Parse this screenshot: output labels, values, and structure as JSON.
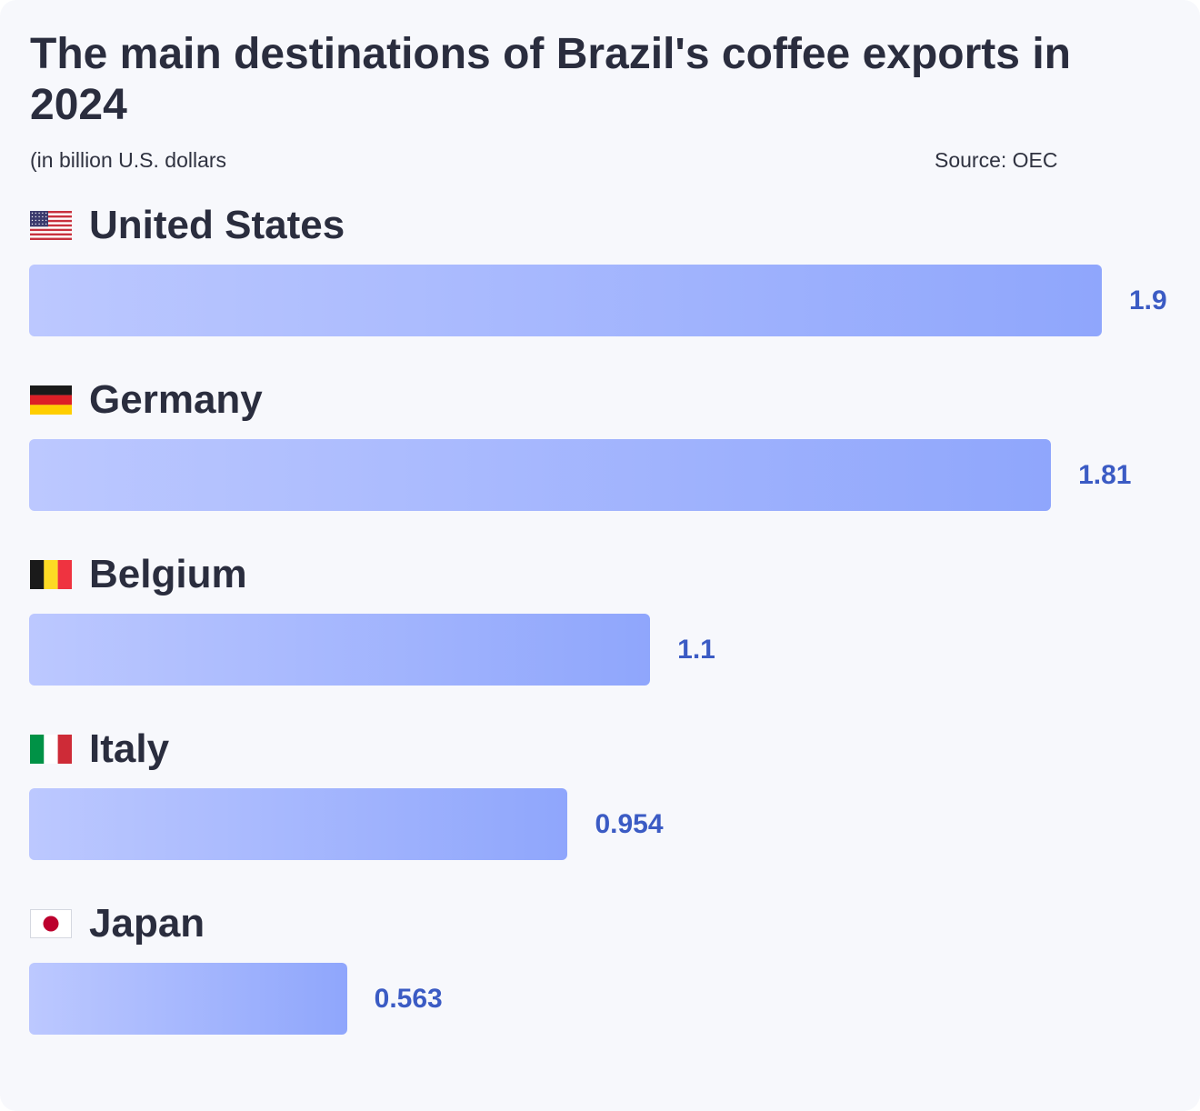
{
  "chart_data": {
    "type": "bar",
    "orientation": "horizontal",
    "title": "The main destinations of Brazil's coffee exports in 2024",
    "subtitle": "(in billion U.S. dollars",
    "source": "Source: OEC",
    "categories": [
      "United States",
      "Germany",
      "Belgium",
      "Italy",
      "Japan"
    ],
    "values": [
      1.9,
      1.81,
      1.1,
      0.954,
      0.563
    ],
    "value_labels": [
      "1.9",
      "1.81",
      "1.1",
      "0.954",
      "0.563"
    ],
    "flag_icons": [
      "us-flag-icon",
      "germany-flag-icon",
      "belgium-flag-icon",
      "italy-flag-icon",
      "japan-flag-icon"
    ],
    "xlim": [
      0,
      1.9
    ],
    "grid": false,
    "colors": {
      "bar_start": "#bcc8ff",
      "bar_end": "#8fa6fc",
      "value_label": "#3b5bc4",
      "text": "#2a2d3e",
      "background": "#f7f8fc"
    }
  }
}
